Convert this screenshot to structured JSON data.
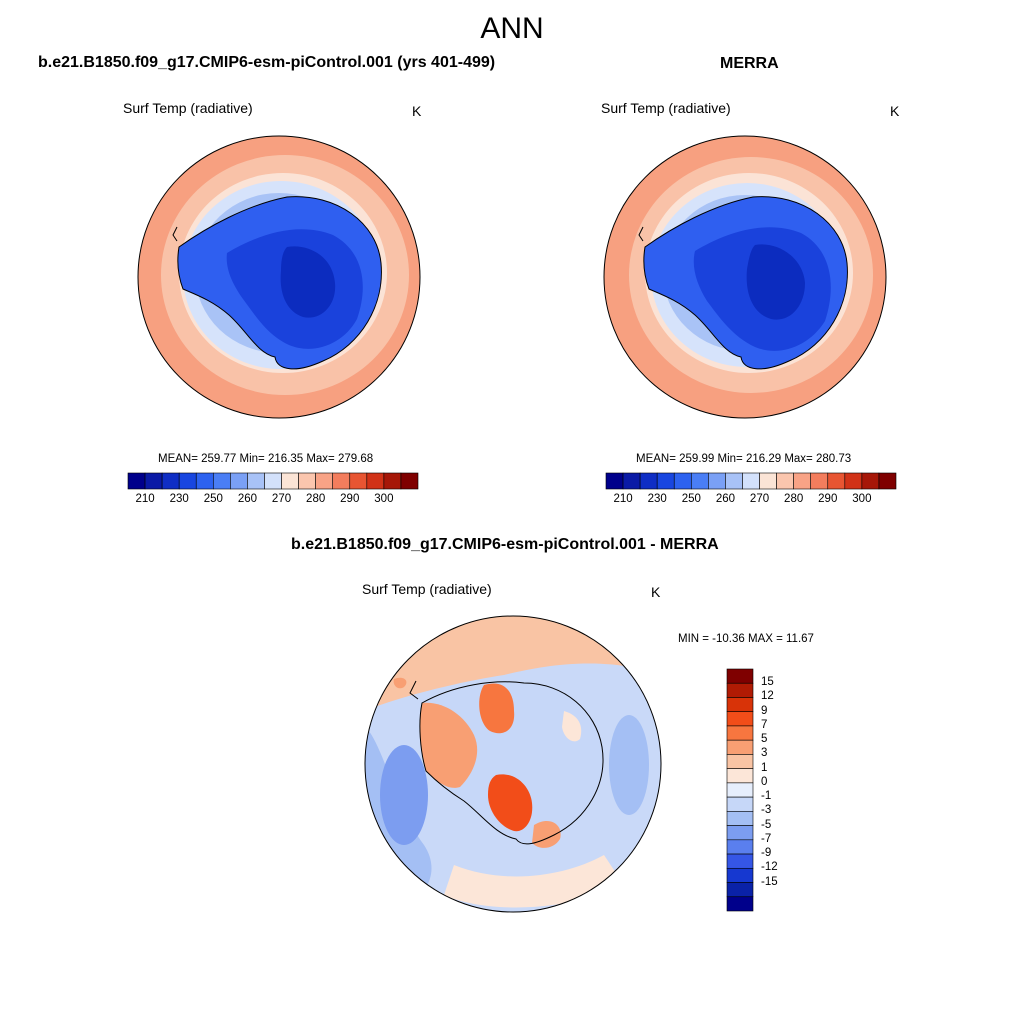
{
  "figure": {
    "title": "ANN"
  },
  "panels": [
    {
      "heading": "b.e21.B1850.f09_g17.CMIP6-esm-piControl.001 (yrs 401-499)",
      "variable": "Surf Temp (radiative)",
      "units": "K",
      "stats": "MEAN= 259.77  Min= 216.35  Max= 279.68"
    },
    {
      "heading": "MERRA",
      "variable": "Surf Temp (radiative)",
      "units": "K",
      "stats": "MEAN= 259.99  Min= 216.29  Max= 280.73"
    },
    {
      "heading": "b.e21.B1850.f09_g17.CMIP6-esm-piControl.001 - MERRA",
      "variable": "Surf Temp (radiative)",
      "units": "K",
      "stats": "MIN = -10.36 MAX =  11.67"
    }
  ],
  "chart_data": [
    {
      "type": "heatmap",
      "projection": "south polar stereographic",
      "variable": "Surf Temp (radiative)",
      "units": "K",
      "mean": 259.77,
      "min": 216.35,
      "max": 279.68,
      "colorbar": {
        "orientation": "horizontal",
        "levels": [
          205,
          210,
          220,
          230,
          240,
          250,
          255,
          260,
          265,
          270,
          275,
          280,
          285,
          290,
          295,
          300
        ],
        "tick_labels": [
          "210",
          "230",
          "250",
          "260",
          "270",
          "280",
          "290",
          "300"
        ],
        "colors": [
          "#00008b",
          "#0a1aa6",
          "#0f2ec5",
          "#1846e0",
          "#2d62f0",
          "#4a7ef5",
          "#7aa0f5",
          "#a8c2f7",
          "#d3e1fb",
          "#fbe4d6",
          "#fbc6ae",
          "#f8a386",
          "#f37d5d",
          "#e85532",
          "#d13217",
          "#a61708",
          "#7f0000"
        ]
      }
    },
    {
      "type": "heatmap",
      "projection": "south polar stereographic",
      "variable": "Surf Temp (radiative)",
      "units": "K",
      "mean": 259.99,
      "min": 216.29,
      "max": 280.73,
      "colorbar": {
        "orientation": "horizontal",
        "tick_labels": [
          "210",
          "230",
          "250",
          "260",
          "270",
          "280",
          "290",
          "300"
        ]
      }
    },
    {
      "type": "heatmap",
      "projection": "south polar stereographic",
      "variable": "Surf Temp (radiative)",
      "units": "K",
      "min": -10.36,
      "max": 11.67,
      "colorbar": {
        "orientation": "vertical",
        "tick_labels": [
          "15",
          "12",
          "9",
          "7",
          "5",
          "3",
          "1",
          "0",
          "-1",
          "-3",
          "-5",
          "-7",
          "-9",
          "-12",
          "-15"
        ],
        "colors": [
          "#7f0000",
          "#b01b04",
          "#d83308",
          "#f24d19",
          "#f7763f",
          "#f89f73",
          "#f9c4a4",
          "#fce6d8",
          "#e6eefc",
          "#c6d7f8",
          "#a4bff4",
          "#7c9df0",
          "#5a7fee",
          "#3556e6",
          "#1638d0",
          "#0a22a8",
          "#00008b"
        ]
      }
    }
  ],
  "colors": {
    "land_outline": "#000000",
    "map_border": "#000000"
  }
}
